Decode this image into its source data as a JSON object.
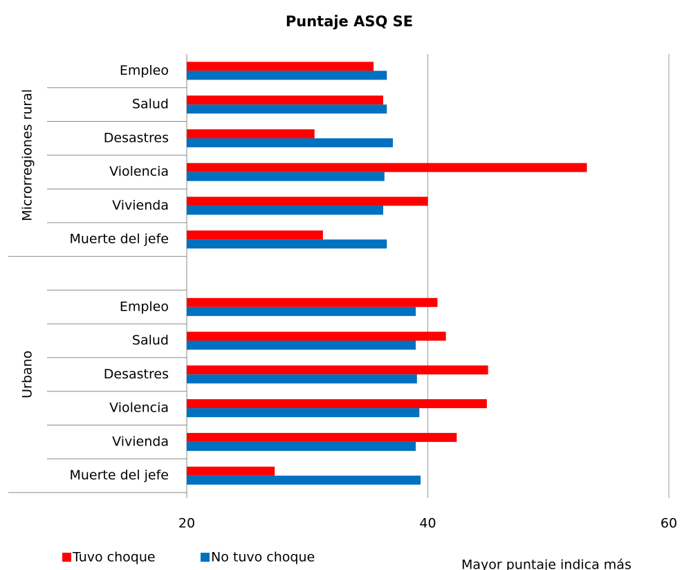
{
  "chart_data": {
    "type": "bar",
    "orientation": "horizontal",
    "title": "Puntaje ASQ SE",
    "categories": [
      "Empleo",
      "Salud",
      "Desastres",
      "Violencia",
      "Vivienda",
      "Muerte del jefe",
      null,
      "Empleo",
      "Salud",
      "Desastres",
      "Violencia",
      "Vivienda",
      "Muerte del jefe"
    ],
    "groups": [
      {
        "name": "Microrregiones rural",
        "count": 6
      },
      {
        "name": "Urbano",
        "count": 7
      }
    ],
    "series": [
      {
        "name": "Tuvo choque",
        "color": "#ff0000",
        "values": [
          35.5,
          36.3,
          30.6,
          53.2,
          40.0,
          31.3,
          null,
          40.8,
          41.5,
          45.0,
          44.9,
          42.4,
          27.3
        ]
      },
      {
        "name": "No tuvo choque",
        "color": "#0070c0",
        "values": [
          36.6,
          36.6,
          37.1,
          36.4,
          36.3,
          36.6,
          null,
          39.0,
          39.0,
          39.1,
          39.3,
          39.0,
          39.4
        ]
      }
    ],
    "xlim": [
      20,
      60
    ],
    "xticks": [
      20,
      40,
      60
    ],
    "grid": true,
    "legend": "bottom-left",
    "annotation": "Mayor puntaje indica más"
  }
}
